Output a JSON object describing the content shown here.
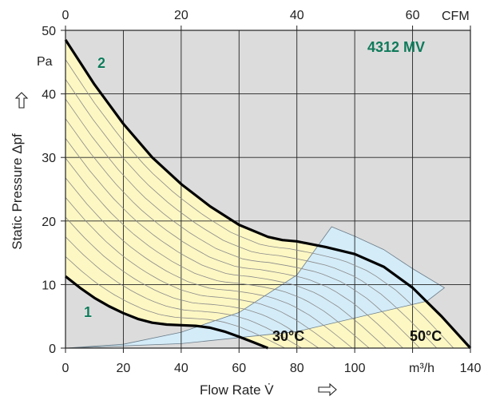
{
  "chart_data": {
    "type": "line",
    "title": "4312 MV",
    "xlabel": "Flow Rate  V̇",
    "ylabel": "Static Pressure  Δpf",
    "x_unit": "m³/h",
    "y_unit": "Pa",
    "top_axis_unit": "CFM",
    "xlim": [
      0,
      140
    ],
    "ylim": [
      0,
      50
    ],
    "top_xlim": [
      0,
      70
    ],
    "x_ticks": [
      0,
      20,
      40,
      60,
      80,
      100,
      120,
      140
    ],
    "y_ticks": [
      0,
      10,
      20,
      30,
      40,
      50
    ],
    "top_ticks": [
      0,
      20,
      40,
      60
    ],
    "grid": true,
    "colors": {
      "plot_bg": "#dcdcdc",
      "operating_area": "#fdf7c3",
      "system_band": "#d4ecf8",
      "curve": "#000000",
      "iso_line": "#8a8a8a",
      "badge": "#0f7a5a"
    },
    "series": [
      {
        "name": "1",
        "x": [
          0,
          5,
          10,
          15,
          20,
          25,
          30,
          35,
          40,
          45,
          50,
          55,
          60,
          65,
          70
        ],
        "y": [
          11.3,
          9.5,
          7.9,
          6.6,
          5.5,
          4.6,
          4.0,
          3.7,
          3.6,
          3.5,
          3.2,
          2.6,
          1.8,
          0.9,
          0
        ]
      },
      {
        "name": "2",
        "x": [
          0,
          5,
          10,
          20,
          30,
          40,
          50,
          60,
          70,
          75,
          80,
          90,
          100,
          110,
          120,
          130,
          140
        ],
        "y": [
          48.5,
          45.0,
          41.5,
          35.3,
          30.0,
          25.8,
          22.3,
          19.4,
          17.5,
          17.0,
          16.8,
          15.9,
          14.8,
          12.8,
          9.5,
          5.0,
          0
        ]
      }
    ],
    "system_band": {
      "upper": {
        "x": [
          0,
          20,
          40,
          60,
          80,
          92
        ],
        "y": [
          0,
          0.6,
          2.5,
          5.6,
          11.5,
          19.1
        ]
      },
      "lower": {
        "x": [
          0,
          40,
          80,
          125,
          131
        ],
        "y": [
          0,
          0.7,
          2.6,
          7.4,
          9.5
        ]
      },
      "outer": {
        "x": [
          92,
          100,
          110,
          120,
          131
        ],
        "y": [
          19.1,
          17.6,
          15.5,
          12.5,
          9.5
        ]
      }
    },
    "annotations": [
      "2",
      "1",
      "30°C",
      "50°C"
    ]
  }
}
